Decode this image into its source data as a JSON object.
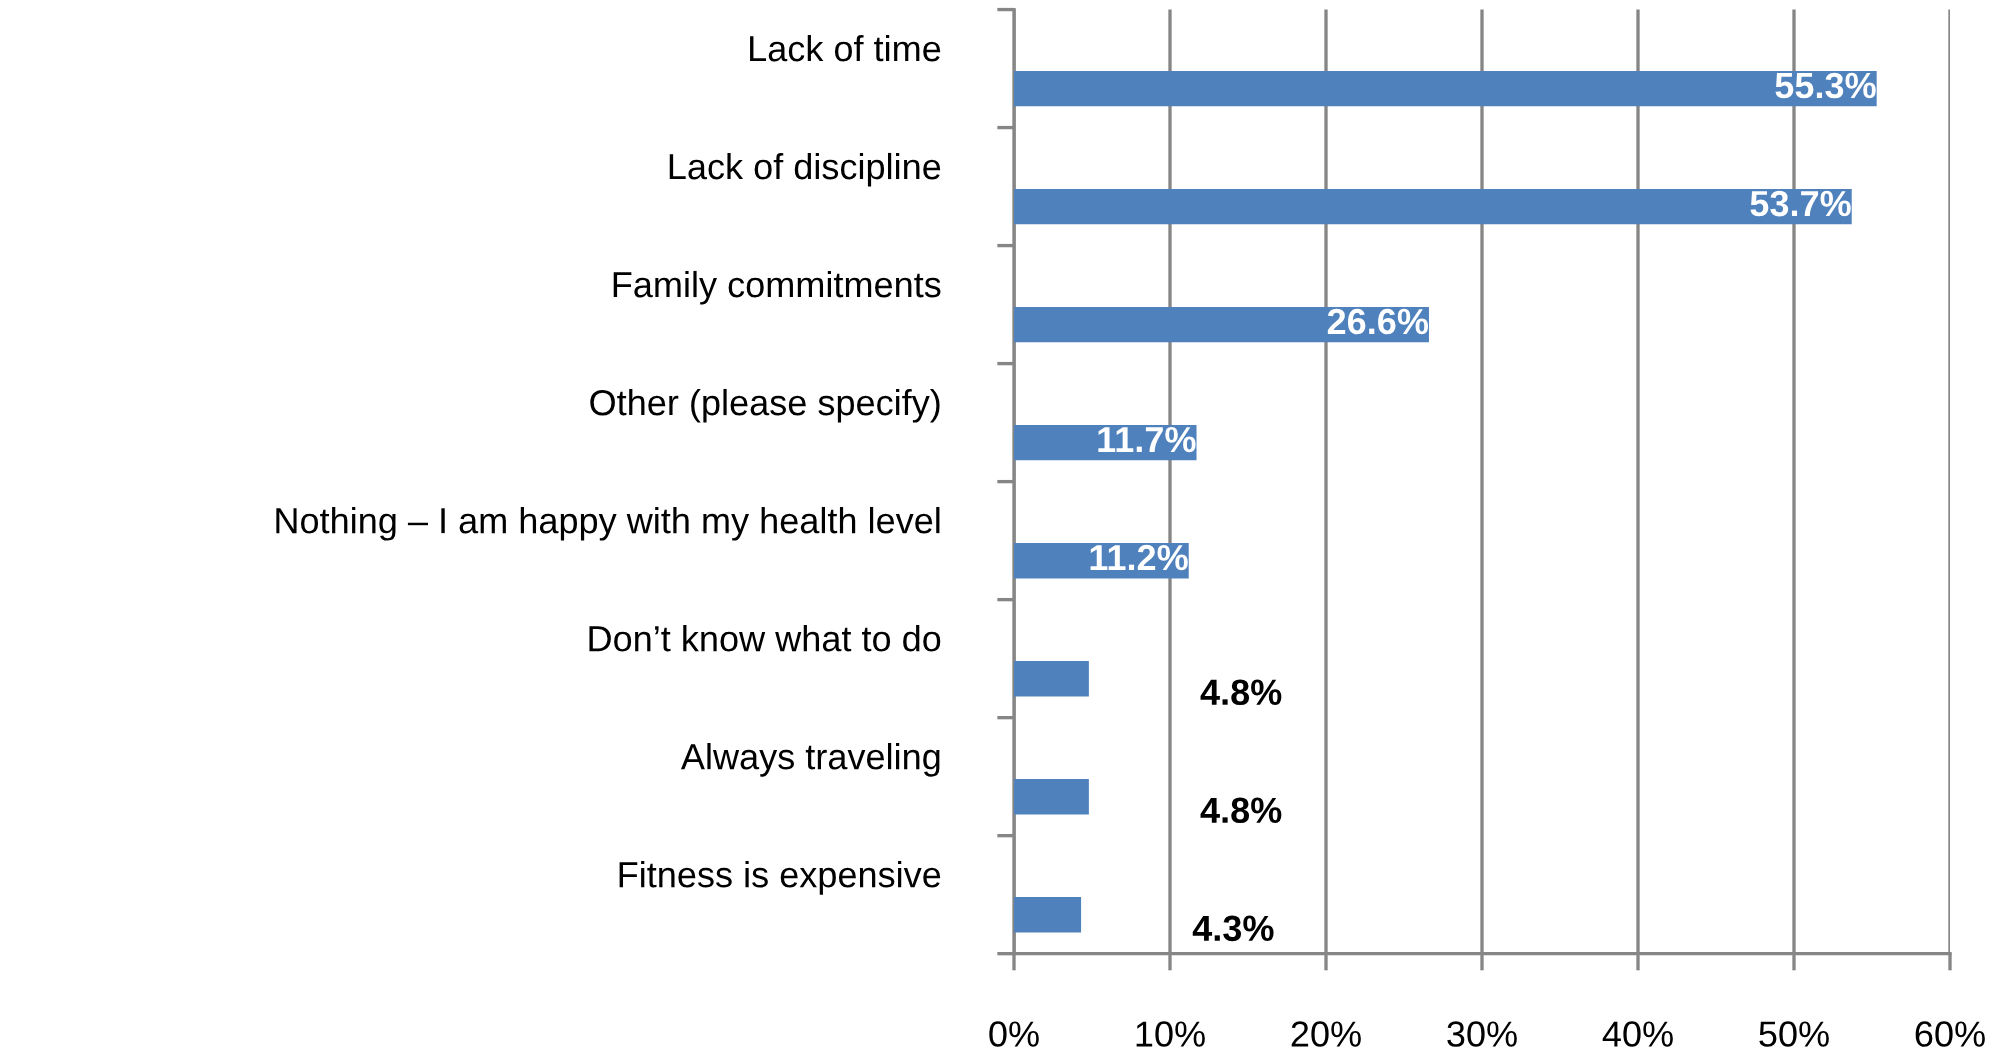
{
  "chart_data": {
    "type": "bar",
    "orientation": "horizontal",
    "categories": [
      "Lack of time",
      "Lack of discipline",
      "Family commitments",
      "Other (please specify)",
      "Nothing – I am happy with my health level",
      "Don’t know what to do",
      "Always traveling",
      "Fitness is expensive"
    ],
    "values": [
      55.3,
      53.7,
      26.6,
      11.7,
      11.2,
      4.8,
      4.8,
      4.3
    ],
    "value_labels": [
      "55.3%",
      "53.7%",
      "26.6%",
      "11.7%",
      "11.2%",
      "4.8%",
      "4.8%",
      "4.3%"
    ],
    "color": "#4f81bd",
    "xlim": [
      0,
      60
    ],
    "xticks": [
      {
        "value": 0,
        "label": "0%"
      },
      {
        "value": 10,
        "label": "10%"
      },
      {
        "value": 20,
        "label": "20%"
      },
      {
        "value": 30,
        "label": "30%"
      },
      {
        "value": 40,
        "label": "40%"
      },
      {
        "value": 50,
        "label": "50%"
      },
      {
        "value": 60,
        "label": "60%"
      }
    ],
    "grid": "x"
  }
}
